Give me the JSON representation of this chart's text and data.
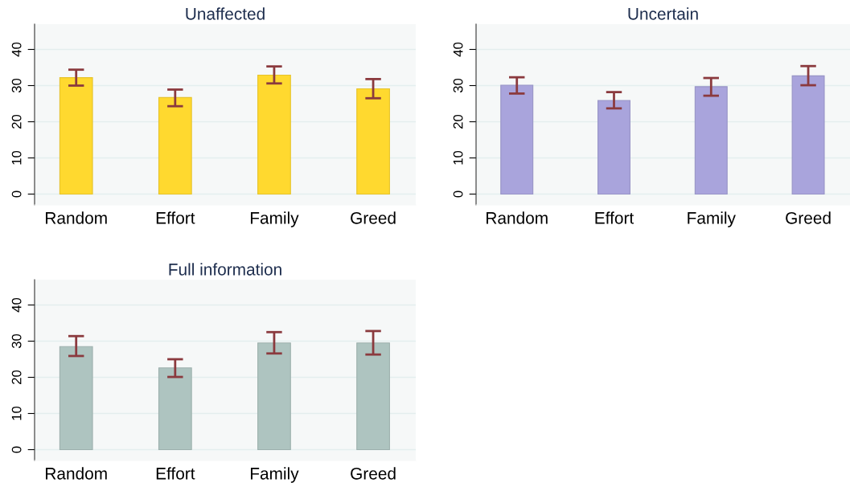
{
  "chart_data": [
    {
      "type": "bar",
      "title": "Unaffected",
      "categories": [
        "Random",
        "Effort",
        "Family",
        "Greed"
      ],
      "color": "#ffd92f",
      "values": [
        32.2,
        26.7,
        32.9,
        29.1
      ],
      "errors": [
        [
          30.0,
          34.4
        ],
        [
          24.3,
          28.9
        ],
        [
          30.6,
          35.3
        ],
        [
          26.5,
          31.8
        ]
      ],
      "ylim": [
        -3,
        47
      ],
      "yticks": [
        0,
        10,
        20,
        30,
        40
      ],
      "grid": "y"
    },
    {
      "type": "bar",
      "title": "Uncertain",
      "categories": [
        "Random",
        "Effort",
        "Family",
        "Greed"
      ],
      "color": "#a9a4dc",
      "values": [
        30.1,
        25.9,
        29.7,
        32.7
      ],
      "errors": [
        [
          27.8,
          32.3
        ],
        [
          23.7,
          28.2
        ],
        [
          27.2,
          32.1
        ],
        [
          30.1,
          35.4
        ]
      ],
      "ylim": [
        -3,
        47
      ],
      "yticks": [
        0,
        10,
        20,
        30,
        40
      ],
      "grid": "y"
    },
    {
      "type": "bar",
      "title": "Full information",
      "categories": [
        "Random",
        "Effort",
        "Family",
        "Greed"
      ],
      "color": "#aec4c0",
      "values": [
        28.5,
        22.6,
        29.5,
        29.5
      ],
      "errors": [
        [
          25.9,
          31.4
        ],
        [
          20.1,
          25.0
        ],
        [
          26.6,
          32.5
        ],
        [
          26.3,
          32.8
        ]
      ],
      "ylim": [
        -3,
        47
      ],
      "yticks": [
        0,
        10,
        20,
        30,
        40
      ],
      "grid": "y"
    }
  ]
}
